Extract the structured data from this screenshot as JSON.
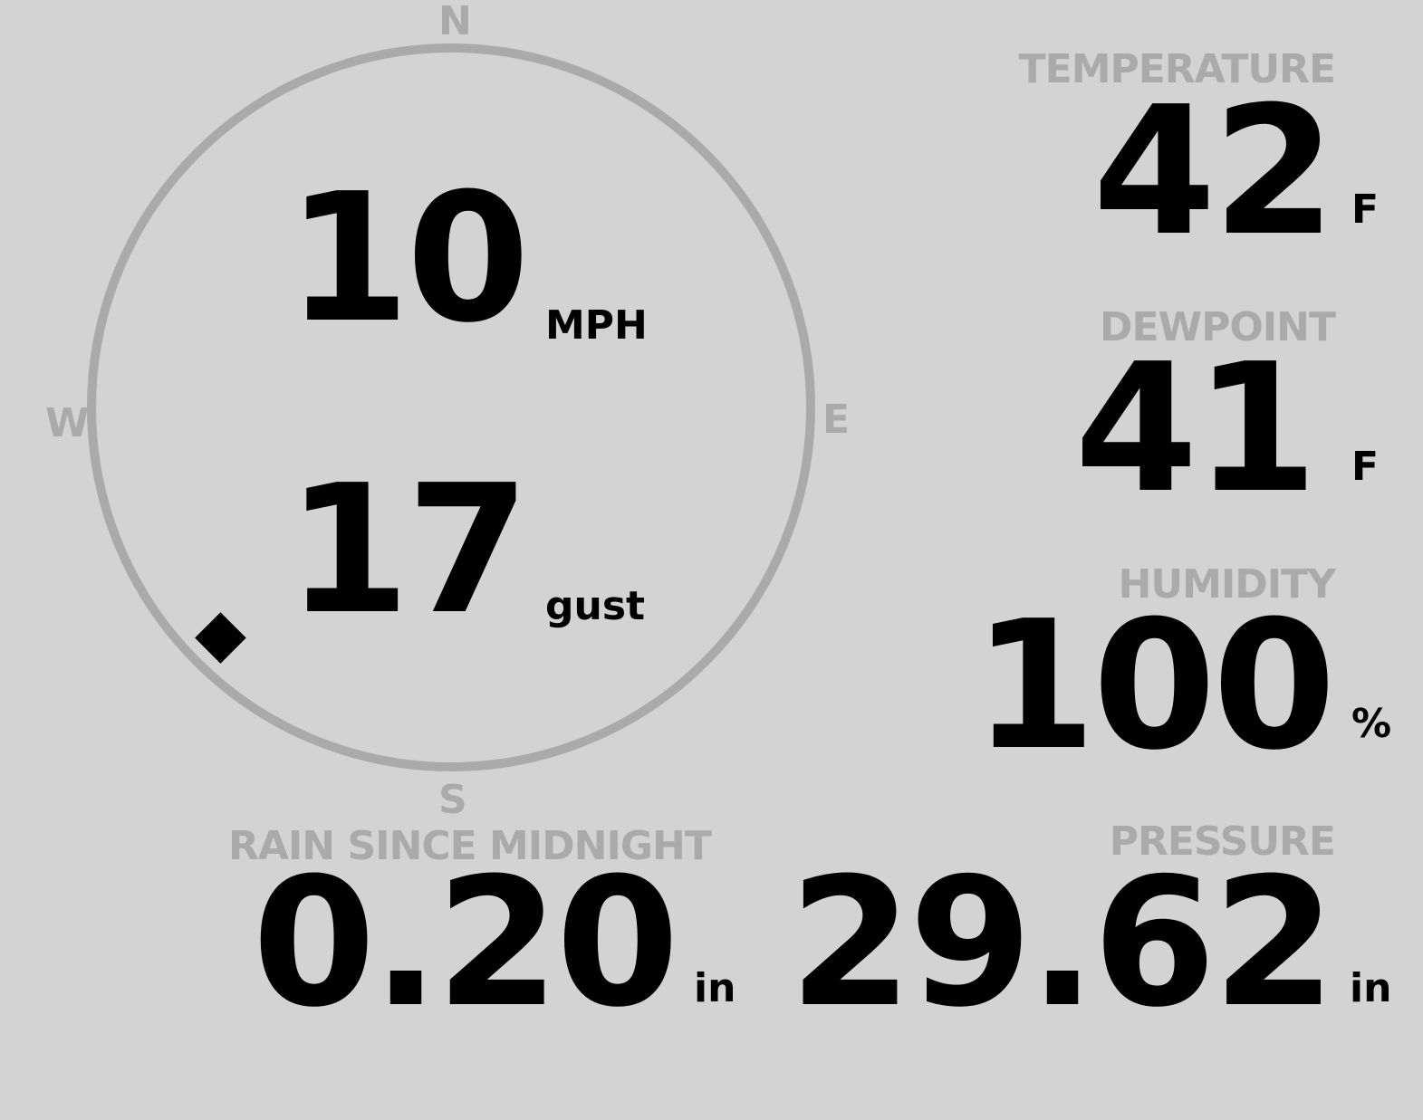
{
  "colors": {
    "background": "#d3d3d3",
    "label": "#aaaaaa",
    "value": "#000000",
    "ring": "#aaaaaa"
  },
  "compass": {
    "north": "N",
    "south": "S",
    "east": "E",
    "west": "W",
    "wind_direction_deg": 225,
    "marker_icon": "diamond-icon"
  },
  "wind": {
    "speed": "10",
    "speed_unit": "MPH",
    "gust": "17",
    "gust_unit": "gust"
  },
  "rain": {
    "label": "RAIN SINCE MIDNIGHT",
    "value": "0.20",
    "unit": "in"
  },
  "temperature": {
    "label": "TEMPERATURE",
    "value": "42",
    "unit": "F"
  },
  "dewpoint": {
    "label": "DEWPOINT",
    "value": "41",
    "unit": "F"
  },
  "humidity": {
    "label": "HUMIDITY",
    "value": "100",
    "unit": "%"
  },
  "pressure": {
    "label": "PRESSURE",
    "value": "29.62",
    "unit": "in"
  }
}
